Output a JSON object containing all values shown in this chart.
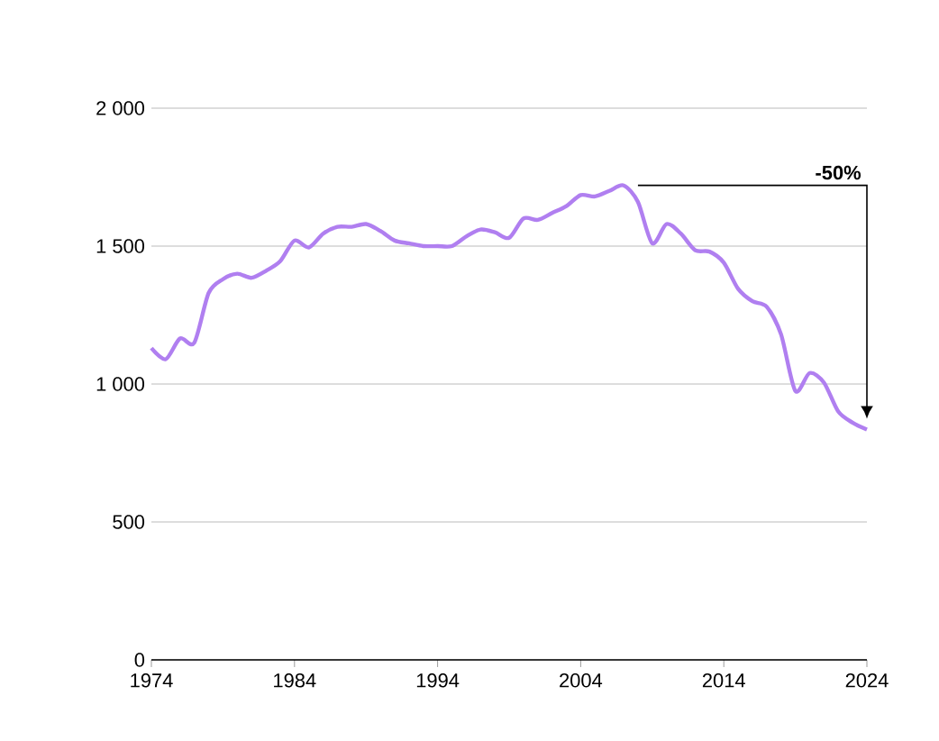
{
  "chart_data": {
    "type": "line",
    "x": [
      1974,
      1975,
      1976,
      1977,
      1978,
      1979,
      1980,
      1981,
      1982,
      1983,
      1984,
      1985,
      1986,
      1987,
      1988,
      1989,
      1990,
      1991,
      1992,
      1993,
      1994,
      1995,
      1996,
      1997,
      1998,
      1999,
      2000,
      2001,
      2002,
      2003,
      2004,
      2005,
      2006,
      2007,
      2008,
      2009,
      2010,
      2011,
      2012,
      2013,
      2014,
      2015,
      2016,
      2017,
      2018,
      2019,
      2020,
      2021,
      2022,
      2023,
      2024
    ],
    "series": [
      {
        "color": "#b07ff0",
        "values": [
          1130,
          1090,
          1165,
          1150,
          1330,
          1380,
          1400,
          1385,
          1410,
          1445,
          1520,
          1495,
          1545,
          1570,
          1570,
          1580,
          1555,
          1520,
          1510,
          1500,
          1500,
          1500,
          1535,
          1560,
          1550,
          1530,
          1600,
          1595,
          1620,
          1645,
          1685,
          1680,
          1700,
          1720,
          1660,
          1510,
          1580,
          1545,
          1485,
          1480,
          1440,
          1345,
          1300,
          1280,
          1180,
          975,
          1040,
          1005,
          900,
          860,
          835
        ]
      }
    ],
    "xlim": [
      1974,
      2024
    ],
    "xticks": [
      1974,
      1984,
      1994,
      2004,
      2014,
      2024
    ],
    "ylim": [
      0,
      2000
    ],
    "yticks": [
      0,
      500,
      {
        "value": 1000,
        "label": "1 000"
      },
      {
        "value": 1500,
        "label": "1 500"
      },
      {
        "value": 2000,
        "label": "2 000"
      }
    ],
    "grid": "y",
    "marker": "none",
    "line_style": "solid",
    "annotations": [
      "-50%"
    ]
  }
}
